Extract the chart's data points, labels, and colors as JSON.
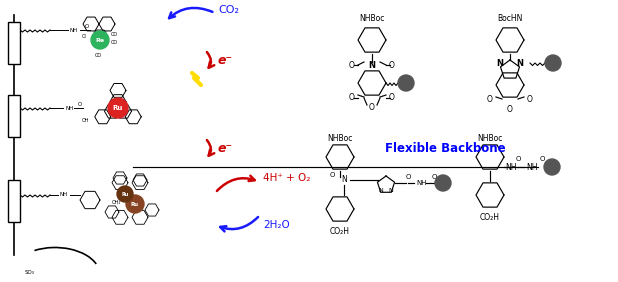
{
  "bg_color": "#ffffff",
  "flexible_backbone_text": "Flexible Backbone",
  "flexible_backbone_color": "#0000ff",
  "co2_text": "CO₂",
  "co2_color": "#1a1aff",
  "eminus_color": "#cc0000",
  "water_text": "2H₂O",
  "water_color": "#1a1aff",
  "oxygen_text": "4H⁺ + O₂",
  "oxygen_color": "#cc0000",
  "re_color": "#2db35d",
  "ru_color": "#dd2222",
  "bead_color": "#555555",
  "black": "#000000"
}
